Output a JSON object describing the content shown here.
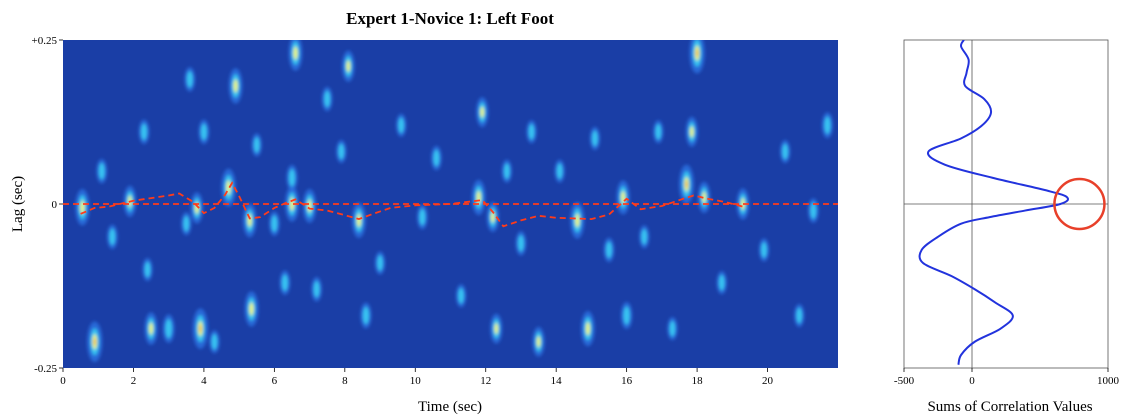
{
  "chart_data": [
    {
      "type": "heatmap",
      "title": "Expert 1-Novice 1: Left Foot",
      "xlabel": "Time (sec)",
      "ylabel": "Lag (sec)",
      "xlim": [
        0,
        22
      ],
      "ylim": [
        -0.25,
        0.25
      ],
      "x_ticks": [
        0,
        2,
        4,
        6,
        8,
        10,
        12,
        14,
        16,
        18,
        20
      ],
      "y_ticks": [
        {
          "value": 0.25,
          "label": "+0.25"
        },
        {
          "value": 0,
          "label": "0"
        },
        {
          "value": -0.25,
          "label": "-0.25"
        }
      ],
      "colors": {
        "background": "#1a3ea6",
        "low": "#2a70e0",
        "mid": "#38c4f2",
        "high": "#e8f47a",
        "peak": "#f3b73a",
        "overlay": "#ff3b1a"
      },
      "reference_line": {
        "lag": 0,
        "style": "dashed",
        "color": "#ff3b1a"
      },
      "lag_trace": {
        "style": "dashed",
        "color": "#ff3b1a",
        "x": [
          0.5,
          0.9,
          1.3,
          2.0,
          2.5,
          3.0,
          3.3,
          3.7,
          4.0,
          4.3,
          4.6,
          4.8,
          5.0,
          5.3,
          5.6,
          6.0,
          6.3,
          6.6,
          7.0,
          7.5,
          8.0,
          8.4,
          8.8,
          9.3,
          10.0,
          11.0,
          11.9,
          12.2,
          12.5,
          13.0,
          13.5,
          14.0,
          14.5,
          15.0,
          15.5,
          16.0,
          16.4,
          17.0,
          17.5,
          17.9,
          18.3,
          18.8,
          19.3
        ],
        "y": [
          -0.015,
          -0.006,
          -0.004,
          0.005,
          0.009,
          0.013,
          0.016,
          0.003,
          -0.014,
          -0.006,
          0.014,
          0.032,
          0.012,
          -0.022,
          -0.02,
          -0.006,
          0.001,
          0.007,
          -0.007,
          -0.01,
          -0.017,
          -0.023,
          -0.015,
          -0.006,
          -0.002,
          0.0,
          0.006,
          -0.012,
          -0.034,
          -0.025,
          -0.018,
          -0.021,
          -0.022,
          -0.023,
          -0.016,
          0.008,
          -0.008,
          -0.003,
          0.006,
          0.013,
          0.008,
          0.003,
          -0.004
        ]
      },
      "blobs": [
        {
          "t": 0.55,
          "lag": -0.005,
          "intensity": 0.8
        },
        {
          "t": 0.9,
          "lag": -0.21,
          "intensity": 0.95
        },
        {
          "t": 1.1,
          "lag": 0.05,
          "intensity": 0.35
        },
        {
          "t": 1.4,
          "lag": -0.05,
          "intensity": 0.35
        },
        {
          "t": 1.9,
          "lag": 0.004,
          "intensity": 0.6
        },
        {
          "t": 2.3,
          "lag": 0.11,
          "intensity": 0.35
        },
        {
          "t": 2.4,
          "lag": -0.1,
          "intensity": 0.3
        },
        {
          "t": 2.5,
          "lag": -0.19,
          "intensity": 0.65
        },
        {
          "t": 3.0,
          "lag": -0.19,
          "intensity": 0.5
        },
        {
          "t": 3.5,
          "lag": -0.03,
          "intensity": 0.3
        },
        {
          "t": 3.6,
          "lag": 0.19,
          "intensity": 0.35
        },
        {
          "t": 3.8,
          "lag": -0.006,
          "intensity": 0.6
        },
        {
          "t": 3.9,
          "lag": -0.19,
          "intensity": 0.95
        },
        {
          "t": 4.0,
          "lag": 0.11,
          "intensity": 0.35
        },
        {
          "t": 4.3,
          "lag": -0.21,
          "intensity": 0.3
        },
        {
          "t": 4.7,
          "lag": 0.025,
          "intensity": 0.85
        },
        {
          "t": 4.9,
          "lag": 0.18,
          "intensity": 0.75
        },
        {
          "t": 5.3,
          "lag": -0.025,
          "intensity": 0.7
        },
        {
          "t": 5.35,
          "lag": -0.16,
          "intensity": 0.75
        },
        {
          "t": 5.5,
          "lag": 0.09,
          "intensity": 0.3
        },
        {
          "t": 6.0,
          "lag": -0.03,
          "intensity": 0.35
        },
        {
          "t": 6.3,
          "lag": -0.12,
          "intensity": 0.35
        },
        {
          "t": 6.5,
          "lag": 0.0,
          "intensity": 0.75
        },
        {
          "t": 6.5,
          "lag": 0.04,
          "intensity": 0.4
        },
        {
          "t": 6.6,
          "lag": 0.23,
          "intensity": 0.75
        },
        {
          "t": 7.0,
          "lag": -0.003,
          "intensity": 0.7
        },
        {
          "t": 7.2,
          "lag": -0.13,
          "intensity": 0.35
        },
        {
          "t": 7.5,
          "lag": 0.16,
          "intensity": 0.35
        },
        {
          "t": 7.9,
          "lag": 0.08,
          "intensity": 0.3
        },
        {
          "t": 8.1,
          "lag": 0.21,
          "intensity": 0.6
        },
        {
          "t": 8.4,
          "lag": -0.025,
          "intensity": 0.75
        },
        {
          "t": 8.6,
          "lag": -0.17,
          "intensity": 0.4
        },
        {
          "t": 9.0,
          "lag": -0.09,
          "intensity": 0.3
        },
        {
          "t": 9.6,
          "lag": 0.12,
          "intensity": 0.3
        },
        {
          "t": 10.2,
          "lag": -0.02,
          "intensity": 0.35
        },
        {
          "t": 10.6,
          "lag": 0.07,
          "intensity": 0.35
        },
        {
          "t": 11.3,
          "lag": -0.14,
          "intensity": 0.3
        },
        {
          "t": 11.8,
          "lag": 0.01,
          "intensity": 0.75
        },
        {
          "t": 11.9,
          "lag": 0.14,
          "intensity": 0.55
        },
        {
          "t": 12.2,
          "lag": -0.02,
          "intensity": 0.55
        },
        {
          "t": 12.3,
          "lag": -0.19,
          "intensity": 0.55
        },
        {
          "t": 12.6,
          "lag": 0.05,
          "intensity": 0.3
        },
        {
          "t": 13.0,
          "lag": -0.06,
          "intensity": 0.35
        },
        {
          "t": 13.3,
          "lag": 0.11,
          "intensity": 0.3
        },
        {
          "t": 13.5,
          "lag": -0.21,
          "intensity": 0.55
        },
        {
          "t": 14.1,
          "lag": 0.05,
          "intensity": 0.3
        },
        {
          "t": 14.6,
          "lag": -0.025,
          "intensity": 0.8
        },
        {
          "t": 14.9,
          "lag": -0.19,
          "intensity": 0.75
        },
        {
          "t": 15.1,
          "lag": 0.1,
          "intensity": 0.3
        },
        {
          "t": 15.5,
          "lag": -0.07,
          "intensity": 0.35
        },
        {
          "t": 15.9,
          "lag": 0.01,
          "intensity": 0.7
        },
        {
          "t": 16.0,
          "lag": -0.17,
          "intensity": 0.45
        },
        {
          "t": 16.5,
          "lag": -0.05,
          "intensity": 0.3
        },
        {
          "t": 16.9,
          "lag": 0.11,
          "intensity": 0.3
        },
        {
          "t": 17.3,
          "lag": -0.19,
          "intensity": 0.3
        },
        {
          "t": 17.7,
          "lag": 0.03,
          "intensity": 0.9
        },
        {
          "t": 17.85,
          "lag": 0.11,
          "intensity": 0.55
        },
        {
          "t": 18.0,
          "lag": 0.23,
          "intensity": 0.95
        },
        {
          "t": 18.2,
          "lag": 0.01,
          "intensity": 0.6
        },
        {
          "t": 18.7,
          "lag": -0.12,
          "intensity": 0.3
        },
        {
          "t": 19.3,
          "lag": 0.0,
          "intensity": 0.6
        },
        {
          "t": 19.9,
          "lag": -0.07,
          "intensity": 0.3
        },
        {
          "t": 20.5,
          "lag": 0.08,
          "intensity": 0.3
        },
        {
          "t": 20.9,
          "lag": -0.17,
          "intensity": 0.3
        },
        {
          "t": 21.3,
          "lag": -0.01,
          "intensity": 0.35
        },
        {
          "t": 21.7,
          "lag": 0.12,
          "intensity": 0.4
        }
      ]
    },
    {
      "type": "line",
      "title": "",
      "xlabel": "Sums of Correlation Values",
      "ylabel": "",
      "xlim": [
        -500,
        1000
      ],
      "ylim": [
        -0.25,
        0.25
      ],
      "x_ticks": [
        -500,
        0,
        1000
      ],
      "series": [
        {
          "color": "#2233dd",
          "lag": [
            0.25,
            0.24,
            0.22,
            0.2,
            0.18,
            0.16,
            0.14,
            0.12,
            0.1,
            0.08,
            0.06,
            0.04,
            0.02,
            0.01,
            0.0,
            -0.01,
            -0.02,
            -0.03,
            -0.05,
            -0.07,
            -0.09,
            -0.11,
            -0.13,
            -0.15,
            -0.17,
            -0.19,
            -0.21,
            -0.23,
            -0.245
          ],
          "sum": [
            -60,
            -80,
            -25,
            -40,
            -50,
            90,
            140,
            75,
            -80,
            -320,
            -200,
            150,
            560,
            700,
            650,
            390,
            130,
            -80,
            -250,
            -370,
            -360,
            -150,
            20,
            170,
            300,
            210,
            20,
            -80,
            -100
          ]
        }
      ],
      "annotations": [
        {
          "shape": "circle",
          "color": "#e8402a",
          "x": 790,
          "lag": 0.0
        }
      ]
    }
  ]
}
